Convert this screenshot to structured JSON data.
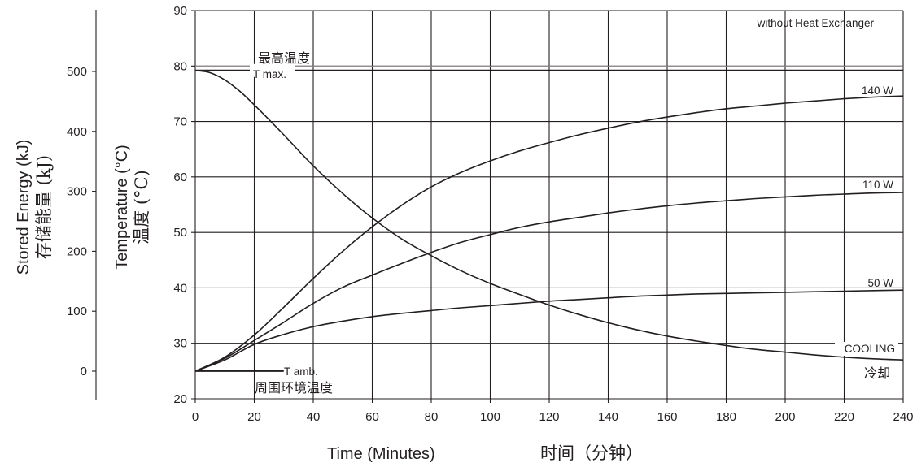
{
  "chart_data": {
    "type": "line",
    "title": "without Heat Exchanger",
    "xlabel": "Time (Minutes)",
    "xlabel_cn": "时间（分钟）",
    "ylabel": "Temperature (°C)",
    "ylabel_cn": "温度 (°C)",
    "y2label": "Stored Energy (kJ)",
    "y2label_cn": "存储能量 (kJ)",
    "xlim": [
      0,
      240
    ],
    "ylim": [
      20,
      90
    ],
    "y2lim": [
      0,
      500
    ],
    "x_ticks": [
      "0",
      "20",
      "40",
      "60",
      "80",
      "100",
      "120",
      "140",
      "160",
      "180",
      "200",
      "220",
      "240"
    ],
    "y_ticks": [
      "20",
      "30",
      "40",
      "50",
      "60",
      "70",
      "80",
      "90"
    ],
    "y2_ticks": [
      "0",
      "100",
      "200",
      "300",
      "400",
      "500"
    ],
    "grid": true,
    "reference_lines": [
      {
        "label": "T max.",
        "label_cn": "最高温度",
        "y": 79.2,
        "x": [
          0,
          240
        ]
      },
      {
        "label": "T amb.",
        "label_cn": "周围环境温度",
        "y": 25,
        "x": [
          0,
          30
        ]
      }
    ],
    "series": [
      {
        "name": "140 W",
        "x": [
          0,
          10,
          20,
          30,
          40,
          50,
          60,
          70,
          80,
          90,
          100,
          110,
          120,
          130,
          140,
          150,
          160,
          170,
          180,
          190,
          200,
          210,
          220,
          230,
          240
        ],
        "y": [
          25,
          27.5,
          31.5,
          36.5,
          41.7,
          46.6,
          51,
          54.9,
          58.2,
          60.8,
          62.9,
          64.7,
          66.2,
          67.6,
          68.8,
          69.9,
          70.8,
          71.6,
          72.3,
          72.8,
          73.3,
          73.7,
          74.1,
          74.4,
          74.6
        ]
      },
      {
        "name": "110 W",
        "x": [
          0,
          10,
          20,
          30,
          40,
          50,
          60,
          70,
          80,
          90,
          100,
          110,
          120,
          130,
          140,
          150,
          160,
          170,
          180,
          190,
          200,
          210,
          220,
          230,
          240
        ],
        "y": [
          25,
          27.3,
          30.5,
          33.8,
          37.2,
          40.1,
          42.3,
          44.4,
          46.4,
          48.2,
          49.6,
          50.9,
          51.9,
          52.7,
          53.5,
          54.2,
          54.8,
          55.3,
          55.7,
          56.1,
          56.4,
          56.7,
          56.9,
          57.1,
          57.2
        ]
      },
      {
        "name": "50 W",
        "x": [
          0,
          10,
          20,
          30,
          40,
          50,
          60,
          70,
          80,
          90,
          100,
          110,
          120,
          130,
          140,
          150,
          160,
          170,
          180,
          190,
          200,
          210,
          220,
          230,
          240
        ],
        "y": [
          25,
          27,
          29.8,
          31.6,
          33,
          34,
          34.8,
          35.4,
          35.9,
          36.4,
          36.8,
          37.2,
          37.6,
          37.9,
          38.2,
          38.5,
          38.7,
          38.9,
          39,
          39.1,
          39.2,
          39.3,
          39.4,
          39.5,
          39.6
        ]
      },
      {
        "name": "COOLING",
        "name_cn": "冷却",
        "x": [
          0,
          5,
          10,
          15,
          20,
          30,
          40,
          50,
          60,
          70,
          80,
          90,
          100,
          110,
          120,
          130,
          140,
          150,
          160,
          170,
          180,
          190,
          200,
          210,
          220,
          230,
          240
        ],
        "y": [
          79.2,
          78.8,
          77.5,
          75.5,
          73,
          67.6,
          62,
          57,
          52.6,
          48.8,
          45.8,
          43.1,
          40.8,
          38.8,
          36.9,
          35.2,
          33.7,
          32.4,
          31.3,
          30.4,
          29.6,
          28.9,
          28.4,
          27.9,
          27.5,
          27.2,
          27
        ]
      }
    ]
  }
}
